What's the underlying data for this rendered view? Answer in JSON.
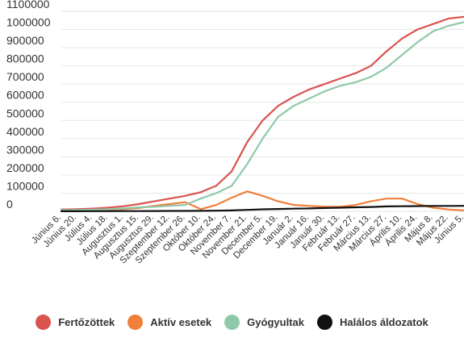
{
  "chart_data": {
    "type": "line",
    "title": "",
    "xlabel": "",
    "ylabel": "",
    "ylim": [
      0,
      1100000
    ],
    "yticks": [
      0,
      100000,
      200000,
      300000,
      400000,
      500000,
      600000,
      700000,
      800000,
      900000,
      1000000,
      1100000
    ],
    "ytick_labels": [
      "0",
      "100000",
      "200000",
      "300000",
      "400000",
      "500000",
      "600000",
      "700000",
      "800000",
      "900000",
      "1000000",
      "1100000"
    ],
    "x": [
      "Június 6.",
      "Június 20.",
      "Július 4.",
      "Július 18.",
      "Augusztus 1.",
      "Augusztus 15.",
      "Augusztus 29.",
      "Szeptember 12.",
      "Szeptember 26.",
      "Október 10.",
      "Október 24.",
      "November 7.",
      "November 21.",
      "December 5.",
      "December 19.",
      "Január 2.",
      "Január 16.",
      "Január 30.",
      "Február 13.",
      "Február 27.",
      "Március 13.",
      "Március 27.",
      "Április 10.",
      "Április 24.",
      "Május 8.",
      "Május 22.",
      "Június 5."
    ],
    "grid": true,
    "legend_position": "bottom",
    "series": [
      {
        "name": "Fertőzöttek",
        "color": "#d9534f",
        "values": [
          10000,
          12000,
          15000,
          20000,
          28000,
          40000,
          55000,
          70000,
          85000,
          105000,
          140000,
          220000,
          380000,
          500000,
          580000,
          630000,
          670000,
          700000,
          730000,
          760000,
          800000,
          880000,
          950000,
          1000000,
          1030000,
          1060000,
          1070000
        ]
      },
      {
        "name": "Aktív esetek",
        "color": "#f07f3c",
        "values": [
          4000,
          5000,
          6000,
          8000,
          12000,
          18000,
          30000,
          40000,
          50000,
          12000,
          35000,
          75000,
          110000,
          85000,
          55000,
          35000,
          30000,
          25000,
          25000,
          35000,
          55000,
          70000,
          70000,
          40000,
          20000,
          10000,
          5000
        ]
      },
      {
        "name": "Gyógyultak",
        "color": "#8fc9a9",
        "values": [
          6000,
          7000,
          9000,
          12000,
          16000,
          22000,
          25000,
          30000,
          35000,
          70000,
          100000,
          140000,
          260000,
          400000,
          520000,
          580000,
          620000,
          660000,
          690000,
          710000,
          740000,
          790000,
          860000,
          930000,
          990000,
          1020000,
          1040000
        ]
      },
      {
        "name": "Halálos áldozatok",
        "color": "#111111",
        "values": [
          500,
          600,
          700,
          900,
          1200,
          1500,
          1800,
          2000,
          2300,
          2700,
          3500,
          5000,
          8000,
          11000,
          13000,
          14500,
          16000,
          18000,
          20000,
          22000,
          24000,
          27000,
          28000,
          29000,
          29500,
          29800,
          30000
        ]
      }
    ]
  }
}
